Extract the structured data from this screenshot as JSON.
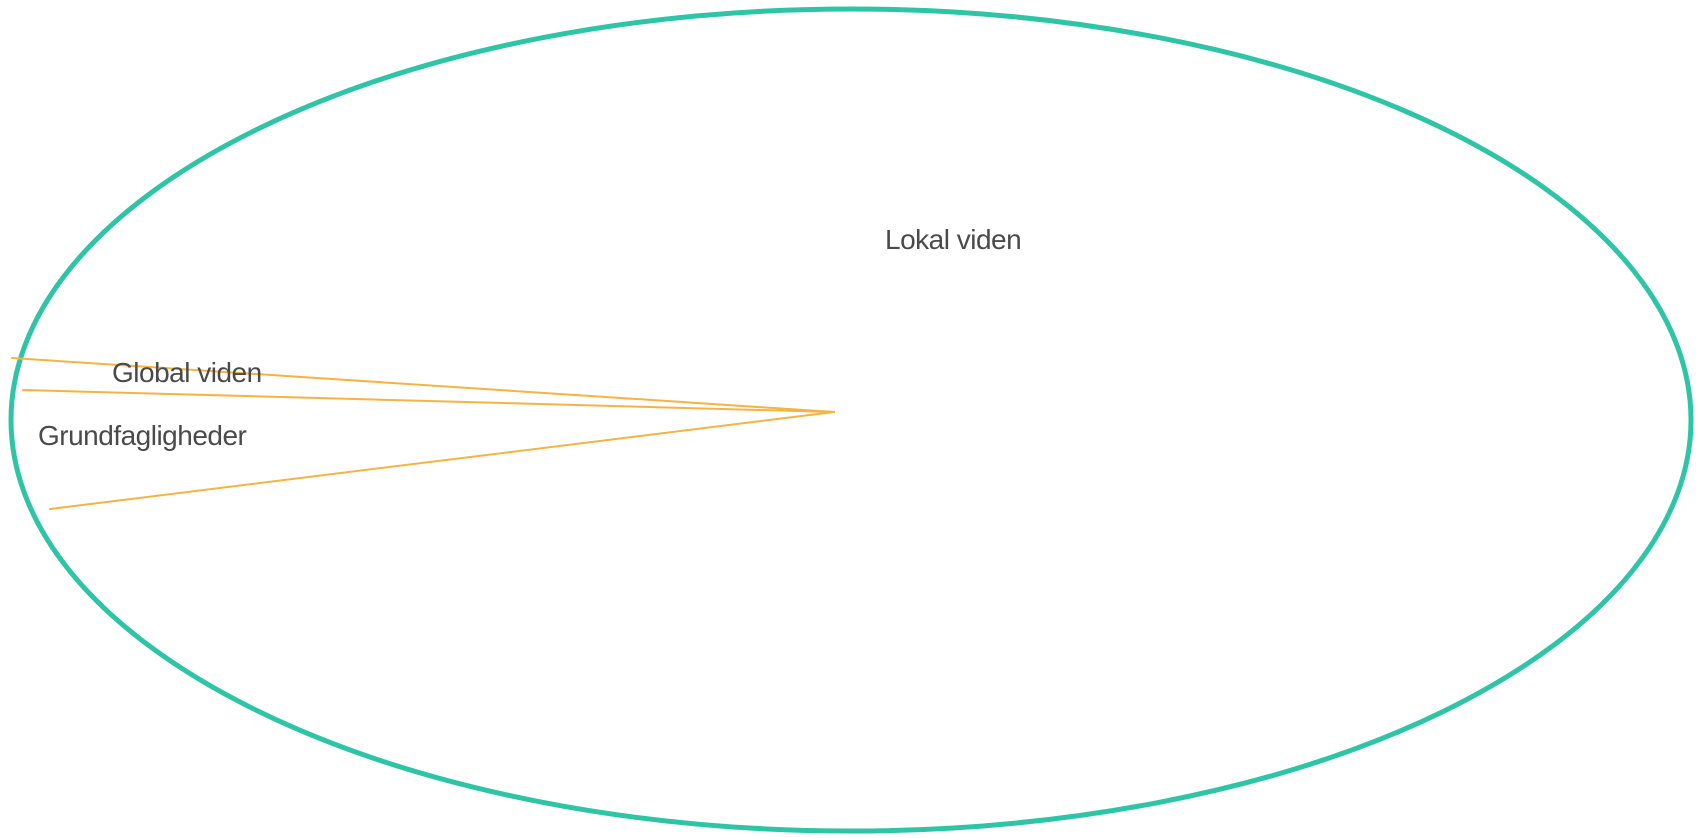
{
  "diagram": {
    "outer_region": {
      "label": "Lokal viden",
      "stroke_color": "#2ec4a6"
    },
    "wedge_stroke_color": "#f5b342",
    "labels": {
      "global": "Global viden",
      "core": "Grundfagligheder"
    }
  }
}
